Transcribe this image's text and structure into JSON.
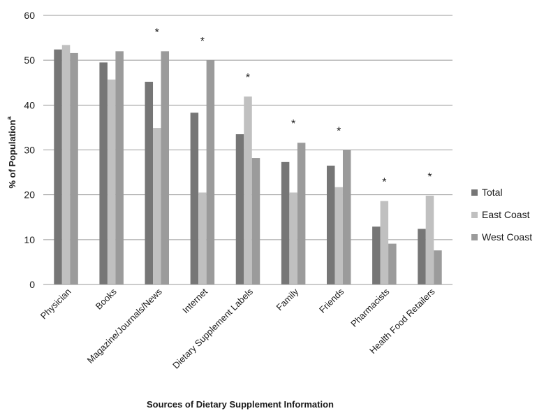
{
  "chart_data": {
    "type": "bar",
    "title": "",
    "xlabel": "Sources of Dietary Supplement Information",
    "ylabel": "% of Population",
    "ylabel_superscript": "a",
    "ylim": [
      0,
      60
    ],
    "yticks": [
      0,
      10,
      20,
      30,
      40,
      50,
      60
    ],
    "grid": true,
    "legend_position": "right",
    "categories": [
      "Physician",
      "Books",
      "Magazine/Journals/News",
      "Internet",
      "Dietary Supplement Labels",
      "Family",
      "Friends",
      "Pharmacists",
      "Health Food Retailers"
    ],
    "significance_marker": "*",
    "significant": [
      false,
      false,
      true,
      true,
      true,
      true,
      true,
      true,
      true
    ],
    "series": [
      {
        "name": "Total",
        "color": "#767676",
        "values": [
          52.4,
          49.5,
          45.2,
          38.3,
          33.5,
          27.3,
          26.5,
          12.9,
          12.4
        ]
      },
      {
        "name": "East Coast",
        "color": "#c0c0c0",
        "values": [
          53.4,
          45.7,
          34.9,
          20.5,
          41.9,
          20.5,
          21.7,
          18.6,
          19.8
        ]
      },
      {
        "name": "West Coast",
        "color": "#9b9b9b",
        "values": [
          51.6,
          52.0,
          52.0,
          50.0,
          28.2,
          31.6,
          30.0,
          9.1,
          7.6
        ]
      }
    ]
  }
}
